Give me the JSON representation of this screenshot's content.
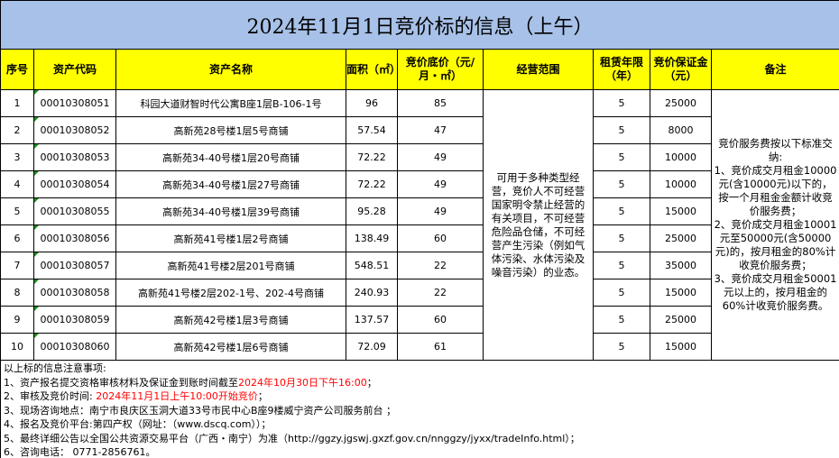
{
  "title": "2024年11月1日竞价标的信息（上午）",
  "headers": {
    "no": "序号",
    "code": "资产代码",
    "name": "资产名称",
    "area": "面积（㎡）",
    "price": "竞价底价（元/月・㎡）",
    "scope": "经营范围",
    "term": "租赁年限（年）",
    "deposit": "竞价保证金（元）",
    "remark": "备注"
  },
  "rows": [
    {
      "no": "1",
      "code": "00010308051",
      "name": "科园大道财智时代公寓B座1层B-106-1号",
      "area": "96",
      "price": "85",
      "term": "5",
      "deposit": "25000"
    },
    {
      "no": "2",
      "code": "00010308052",
      "name": "高新苑28号楼1层5号商铺",
      "area": "57.54",
      "price": "47",
      "term": "5",
      "deposit": "8000"
    },
    {
      "no": "3",
      "code": "00010308053",
      "name": "高新苑34-40号楼1层20号商铺",
      "area": "72.22",
      "price": "49",
      "term": "5",
      "deposit": "10000"
    },
    {
      "no": "4",
      "code": "00010308054",
      "name": "高新苑34-40号楼1层27号商铺",
      "area": "72.22",
      "price": "49",
      "term": "5",
      "deposit": "10000"
    },
    {
      "no": "5",
      "code": "00010308055",
      "name": "高新苑34-40号楼1层39号商铺",
      "area": "95.28",
      "price": "49",
      "term": "5",
      "deposit": "15000"
    },
    {
      "no": "6",
      "code": "00010308056",
      "name": "高新苑41号楼1层2号商铺",
      "area": "138.49",
      "price": "60",
      "term": "5",
      "deposit": "25000"
    },
    {
      "no": "7",
      "code": "00010308057",
      "name": "高新苑41号楼2层201号商铺",
      "area": "548.51",
      "price": "22",
      "term": "5",
      "deposit": "35000"
    },
    {
      "no": "8",
      "code": "00010308058",
      "name": "高新苑41号楼2层202-1号、202-4号商铺",
      "area": "240.93",
      "price": "22",
      "term": "5",
      "deposit": "15000"
    },
    {
      "no": "9",
      "code": "00010308059",
      "name": "高新苑42号楼1层3号商铺",
      "area": "137.57",
      "price": "60",
      "term": "5",
      "deposit": "25000"
    },
    {
      "no": "10",
      "code": "00010308060",
      "name": "高新苑42号楼1层6号商铺",
      "area": "72.09",
      "price": "61",
      "term": "5",
      "deposit": "15000"
    }
  ],
  "scope": "可用于多种类型经营，竞价人不可经营国家明令禁止经营的有关项目，不可经营危险品仓储，不可经营产生污染（例如气体污染、水体污染及噪音污染）的业态。",
  "remark": "竞价服务费按以下标准交纳:\n1、竞价成交月租金10000元(含10000元)以下的，按一个月租金金额计收竞价服务费；\n2、竞价成交月租金10001元至50000元(含50000元)的，按月租金的80%计收竞价服务费；\n3、竞价成交月租金50001元以上的，按月租金的60%计收竞价服务费。",
  "notes": {
    "heading": "以上标的信息注意事项:",
    "n1a": "1、资产报名提交资格审核材料及保证金到账时间截至",
    "n1b": "2024年10月30日下午16:00",
    "n1c": "；",
    "n2a": "2、审核及竞价时间: ",
    "n2b": "2024年11月1日上午10:00开始竞价",
    "n2c": "；",
    "n3": "3、现场咨询地点：南宁市良庆区玉洞大道33号市民中心B座9楼威宁资产公司服务前台 ；",
    "n4": "4、报名及竞价平台:第四产权（网址：（www.dscq.com））；",
    "n5": "5、最终详细公告以全国公共资源交易平台（广西・南宁）为准（http://ggzy.jgswj.gxzf.gov.cn/nnggzy/jyxx/tradeInfo.html）；",
    "n6": "6、咨询电话： 0771-2856761。"
  },
  "colors": {
    "title_bg": "#a7c1e8",
    "header_bg": "#ffff00",
    "highlight": "#ff0000"
  }
}
